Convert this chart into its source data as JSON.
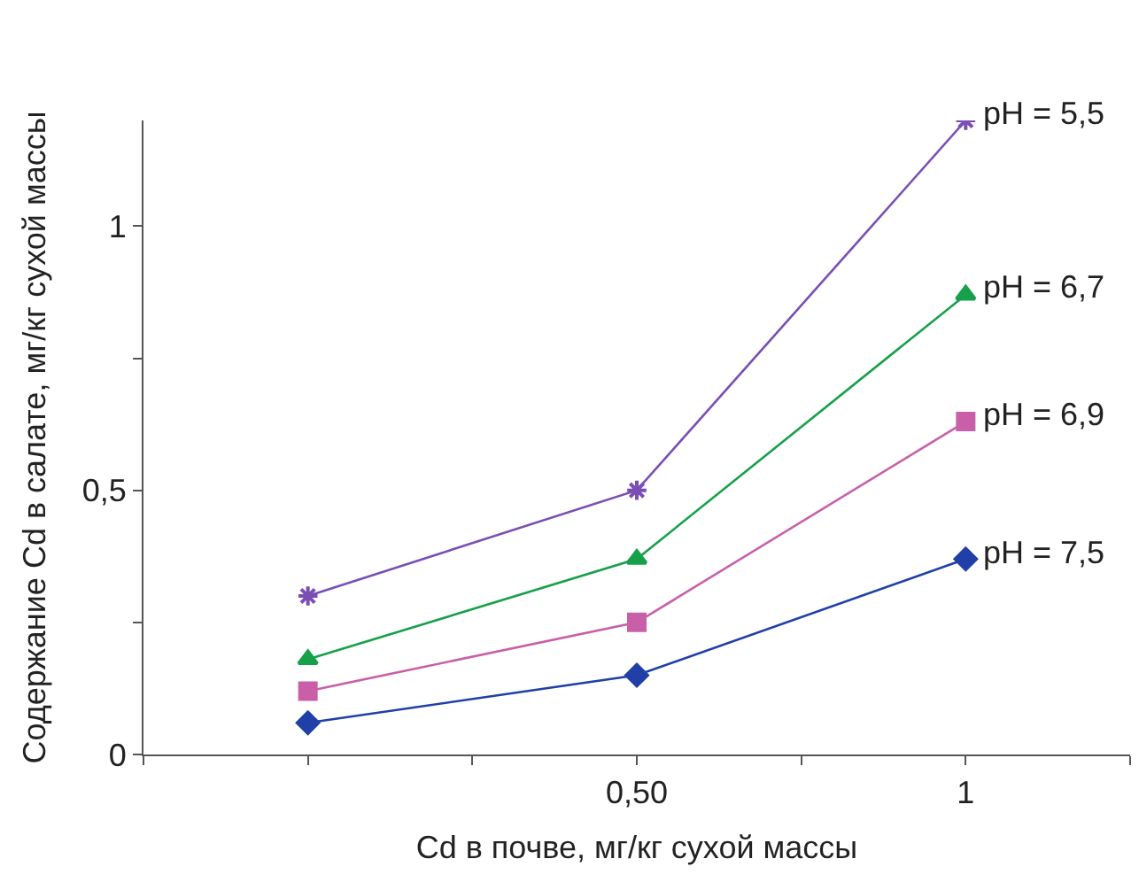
{
  "chart_data": {
    "type": "line",
    "xlabel": "Cd в почве, мг/кг сухой массы",
    "ylabel": "Содержание Cd в салате, мг/кг сухой массы",
    "categories": [
      null,
      "0,50",
      "1"
    ],
    "series": [
      {
        "name": "pH = 5,5",
        "color": "#7a4fb5",
        "marker": "cross",
        "values": [
          0.3,
          0.5,
          1.2
        ]
      },
      {
        "name": "pH = 6,7",
        "color": "#17a04a",
        "marker": "triangle",
        "values": [
          0.18,
          0.37,
          0.87
        ]
      },
      {
        "name": "pH = 6,9",
        "color": "#c85fa8",
        "marker": "square",
        "values": [
          0.12,
          0.25,
          0.63
        ]
      },
      {
        "name": "pH = 7,5",
        "color": "#2040a8",
        "marker": "diamond",
        "values": [
          0.06,
          0.15,
          0.37
        ]
      }
    ],
    "ylim": [
      0,
      1.2
    ],
    "yticks": [
      0,
      {
        "value": 0.25,
        "label": null
      },
      {
        "value": 0.5,
        "label": "0,5"
      },
      {
        "value": 0.75,
        "label": null
      },
      1
    ],
    "legend": false
  }
}
